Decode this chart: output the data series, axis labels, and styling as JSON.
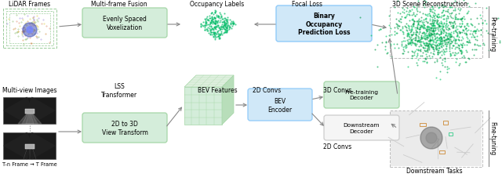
{
  "bg_color": "#ffffff",
  "green_light": "#d4edda",
  "green_edge": "#a5d6a7",
  "blue_light": "#d0e8f8",
  "blue_edge": "#90caf9",
  "arrow_color": "#999999",
  "labels": {
    "lidar": "LiDAR Frames",
    "multiframe": "Multi-frame Fusion",
    "occupancy": "Occupancy Labels",
    "focal": "Focal Loss",
    "scene_recon": "3D Scene Reconstruction",
    "multiview": "Multi-view Images",
    "lss": "LSS\nTransformer",
    "bev_feat": "BEV Features",
    "bev_encoder": "BEV\nEncoder",
    "convs_2d": "2D Convs",
    "evenly_vox": "Evenly Spaced\nVoxelization",
    "view_transform": "2D to 3D\nView Transform",
    "binary_occ": "Binary\nOccupancy\nPrediction Loss",
    "pretrain_dec": "Pre-training\nDecoder",
    "downstream_dec": "Downstream\nDecoder",
    "tnframe": "T-n Frame → T Frame",
    "downstream_tasks": "Downstream Tasks",
    "pretraining": "Pre-training",
    "finetuning": "Fine-tuning",
    "convs_3d": "3D Convs",
    "convs_2d_bot": "2D Convs"
  }
}
